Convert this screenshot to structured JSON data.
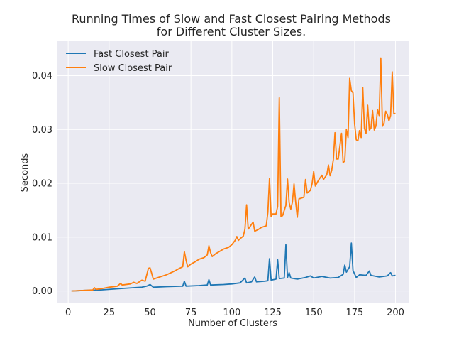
{
  "chart_data": {
    "type": "line",
    "title_lines": [
      "Running Times of Slow and Fast Closest Pairing Methods",
      "for Different Cluster Sizes."
    ],
    "xlabel": "Number of Clusters",
    "ylabel": "Seconds",
    "xlim": [
      -7,
      208
    ],
    "ylim": [
      -0.0023,
      0.0464
    ],
    "x_ticks": [
      0,
      25,
      50,
      75,
      100,
      125,
      150,
      175,
      200
    ],
    "y_ticks": [
      0.0,
      0.01,
      0.02,
      0.03,
      0.04
    ],
    "y_tick_labels": [
      "0.00",
      "0.01",
      "0.02",
      "0.03",
      "0.04"
    ],
    "grid": true,
    "legend_position": "upper-left",
    "series": [
      {
        "name": "Fast Closest Pair",
        "color": "#1f77b4",
        "points": [
          [
            2,
            0.0
          ],
          [
            10,
            0.0001
          ],
          [
            20,
            0.0002
          ],
          [
            30,
            0.0004
          ],
          [
            40,
            0.0006
          ],
          [
            45,
            0.0007
          ],
          [
            48,
            0.0009
          ],
          [
            50,
            0.0012
          ],
          [
            52,
            0.0007
          ],
          [
            60,
            0.0008
          ],
          [
            70,
            0.0009
          ],
          [
            71,
            0.0018
          ],
          [
            72,
            0.0009
          ],
          [
            80,
            0.001
          ],
          [
            85,
            0.0011
          ],
          [
            86,
            0.0021
          ],
          [
            87,
            0.0011
          ],
          [
            95,
            0.0012
          ],
          [
            100,
            0.0013
          ],
          [
            105,
            0.0015
          ],
          [
            108,
            0.0024
          ],
          [
            109,
            0.0015
          ],
          [
            112,
            0.0017
          ],
          [
            114,
            0.0026
          ],
          [
            115,
            0.0017
          ],
          [
            120,
            0.0018
          ],
          [
            122,
            0.0019
          ],
          [
            123,
            0.006
          ],
          [
            124,
            0.002
          ],
          [
            127,
            0.0022
          ],
          [
            128,
            0.0058
          ],
          [
            129,
            0.0023
          ],
          [
            132,
            0.0024
          ],
          [
            133,
            0.0086
          ],
          [
            134,
            0.0025
          ],
          [
            135,
            0.0034
          ],
          [
            136,
            0.0024
          ],
          [
            140,
            0.0022
          ],
          [
            145,
            0.0025
          ],
          [
            148,
            0.0028
          ],
          [
            150,
            0.0024
          ],
          [
            155,
            0.0027
          ],
          [
            160,
            0.0024
          ],
          [
            165,
            0.0025
          ],
          [
            168,
            0.0031
          ],
          [
            169,
            0.0048
          ],
          [
            170,
            0.0035
          ],
          [
            172,
            0.0045
          ],
          [
            173,
            0.0089
          ],
          [
            174,
            0.0038
          ],
          [
            176,
            0.0025
          ],
          [
            178,
            0.003
          ],
          [
            182,
            0.0029
          ],
          [
            184,
            0.0037
          ],
          [
            185,
            0.0029
          ],
          [
            190,
            0.0026
          ],
          [
            195,
            0.0028
          ],
          [
            197,
            0.0034
          ],
          [
            198,
            0.0028
          ],
          [
            200,
            0.0029
          ]
        ]
      },
      {
        "name": "Slow Closest Pair",
        "color": "#ff7f0e",
        "points": [
          [
            2,
            0.0
          ],
          [
            10,
            0.0001
          ],
          [
            15,
            0.0002
          ],
          [
            16,
            0.0006
          ],
          [
            17,
            0.0003
          ],
          [
            20,
            0.0004
          ],
          [
            25,
            0.0007
          ],
          [
            30,
            0.0009
          ],
          [
            32,
            0.0014
          ],
          [
            33,
            0.0011
          ],
          [
            38,
            0.0013
          ],
          [
            40,
            0.0016
          ],
          [
            42,
            0.0014
          ],
          [
            45,
            0.002
          ],
          [
            47,
            0.0018
          ],
          [
            49,
            0.0042
          ],
          [
            50,
            0.0043
          ],
          [
            51,
            0.0033
          ],
          [
            52,
            0.0022
          ],
          [
            55,
            0.0025
          ],
          [
            60,
            0.003
          ],
          [
            65,
            0.0037
          ],
          [
            68,
            0.0042
          ],
          [
            70,
            0.0045
          ],
          [
            71,
            0.0073
          ],
          [
            72,
            0.0057
          ],
          [
            73,
            0.0045
          ],
          [
            75,
            0.005
          ],
          [
            78,
            0.0055
          ],
          [
            80,
            0.0059
          ],
          [
            83,
            0.0062
          ],
          [
            85,
            0.0067
          ],
          [
            86,
            0.0084
          ],
          [
            87,
            0.0071
          ],
          [
            88,
            0.0064
          ],
          [
            90,
            0.0069
          ],
          [
            95,
            0.0078
          ],
          [
            98,
            0.0081
          ],
          [
            100,
            0.0086
          ],
          [
            102,
            0.0094
          ],
          [
            103,
            0.0101
          ],
          [
            104,
            0.0094
          ],
          [
            105,
            0.0097
          ],
          [
            107,
            0.0102
          ],
          [
            108,
            0.0115
          ],
          [
            109,
            0.016
          ],
          [
            110,
            0.0115
          ],
          [
            111,
            0.0119
          ],
          [
            113,
            0.0128
          ],
          [
            114,
            0.0111
          ],
          [
            116,
            0.0114
          ],
          [
            118,
            0.0118
          ],
          [
            121,
            0.0121
          ],
          [
            122,
            0.0146
          ],
          [
            123,
            0.0209
          ],
          [
            124,
            0.0138
          ],
          [
            125,
            0.0143
          ],
          [
            127,
            0.0143
          ],
          [
            128,
            0.0157
          ],
          [
            129,
            0.0359
          ],
          [
            130,
            0.0138
          ],
          [
            131,
            0.014
          ],
          [
            133,
            0.0159
          ],
          [
            134,
            0.0208
          ],
          [
            135,
            0.0164
          ],
          [
            136,
            0.0152
          ],
          [
            137,
            0.0165
          ],
          [
            138,
            0.0199
          ],
          [
            139,
            0.0165
          ],
          [
            140,
            0.0137
          ],
          [
            141,
            0.0171
          ],
          [
            144,
            0.0174
          ],
          [
            145,
            0.0207
          ],
          [
            146,
            0.0182
          ],
          [
            148,
            0.0187
          ],
          [
            149,
            0.0199
          ],
          [
            150,
            0.0222
          ],
          [
            151,
            0.0195
          ],
          [
            153,
            0.0206
          ],
          [
            155,
            0.0215
          ],
          [
            156,
            0.0207
          ],
          [
            158,
            0.0216
          ],
          [
            159,
            0.0234
          ],
          [
            160,
            0.0214
          ],
          [
            161,
            0.0224
          ],
          [
            162,
            0.0244
          ],
          [
            163,
            0.0294
          ],
          [
            164,
            0.0245
          ],
          [
            165,
            0.0245
          ],
          [
            167,
            0.0293
          ],
          [
            168,
            0.0238
          ],
          [
            169,
            0.0242
          ],
          [
            170,
            0.03
          ],
          [
            171,
            0.0285
          ],
          [
            172,
            0.0395
          ],
          [
            173,
            0.0372
          ],
          [
            174,
            0.0368
          ],
          [
            175,
            0.031
          ],
          [
            176,
            0.0281
          ],
          [
            177,
            0.0279
          ],
          [
            178,
            0.0298
          ],
          [
            179,
            0.0285
          ],
          [
            180,
            0.0378
          ],
          [
            181,
            0.0302
          ],
          [
            182,
            0.0293
          ],
          [
            183,
            0.0345
          ],
          [
            184,
            0.0299
          ],
          [
            185,
            0.0302
          ],
          [
            186,
            0.0335
          ],
          [
            187,
            0.0299
          ],
          [
            188,
            0.0306
          ],
          [
            189,
            0.0337
          ],
          [
            190,
            0.0326
          ],
          [
            191,
            0.0433
          ],
          [
            192,
            0.0306
          ],
          [
            193,
            0.0312
          ],
          [
            194,
            0.0334
          ],
          [
            195,
            0.0328
          ],
          [
            196,
            0.0316
          ],
          [
            197,
            0.0326
          ],
          [
            198,
            0.0407
          ],
          [
            199,
            0.0329
          ],
          [
            200,
            0.033
          ]
        ]
      }
    ]
  }
}
